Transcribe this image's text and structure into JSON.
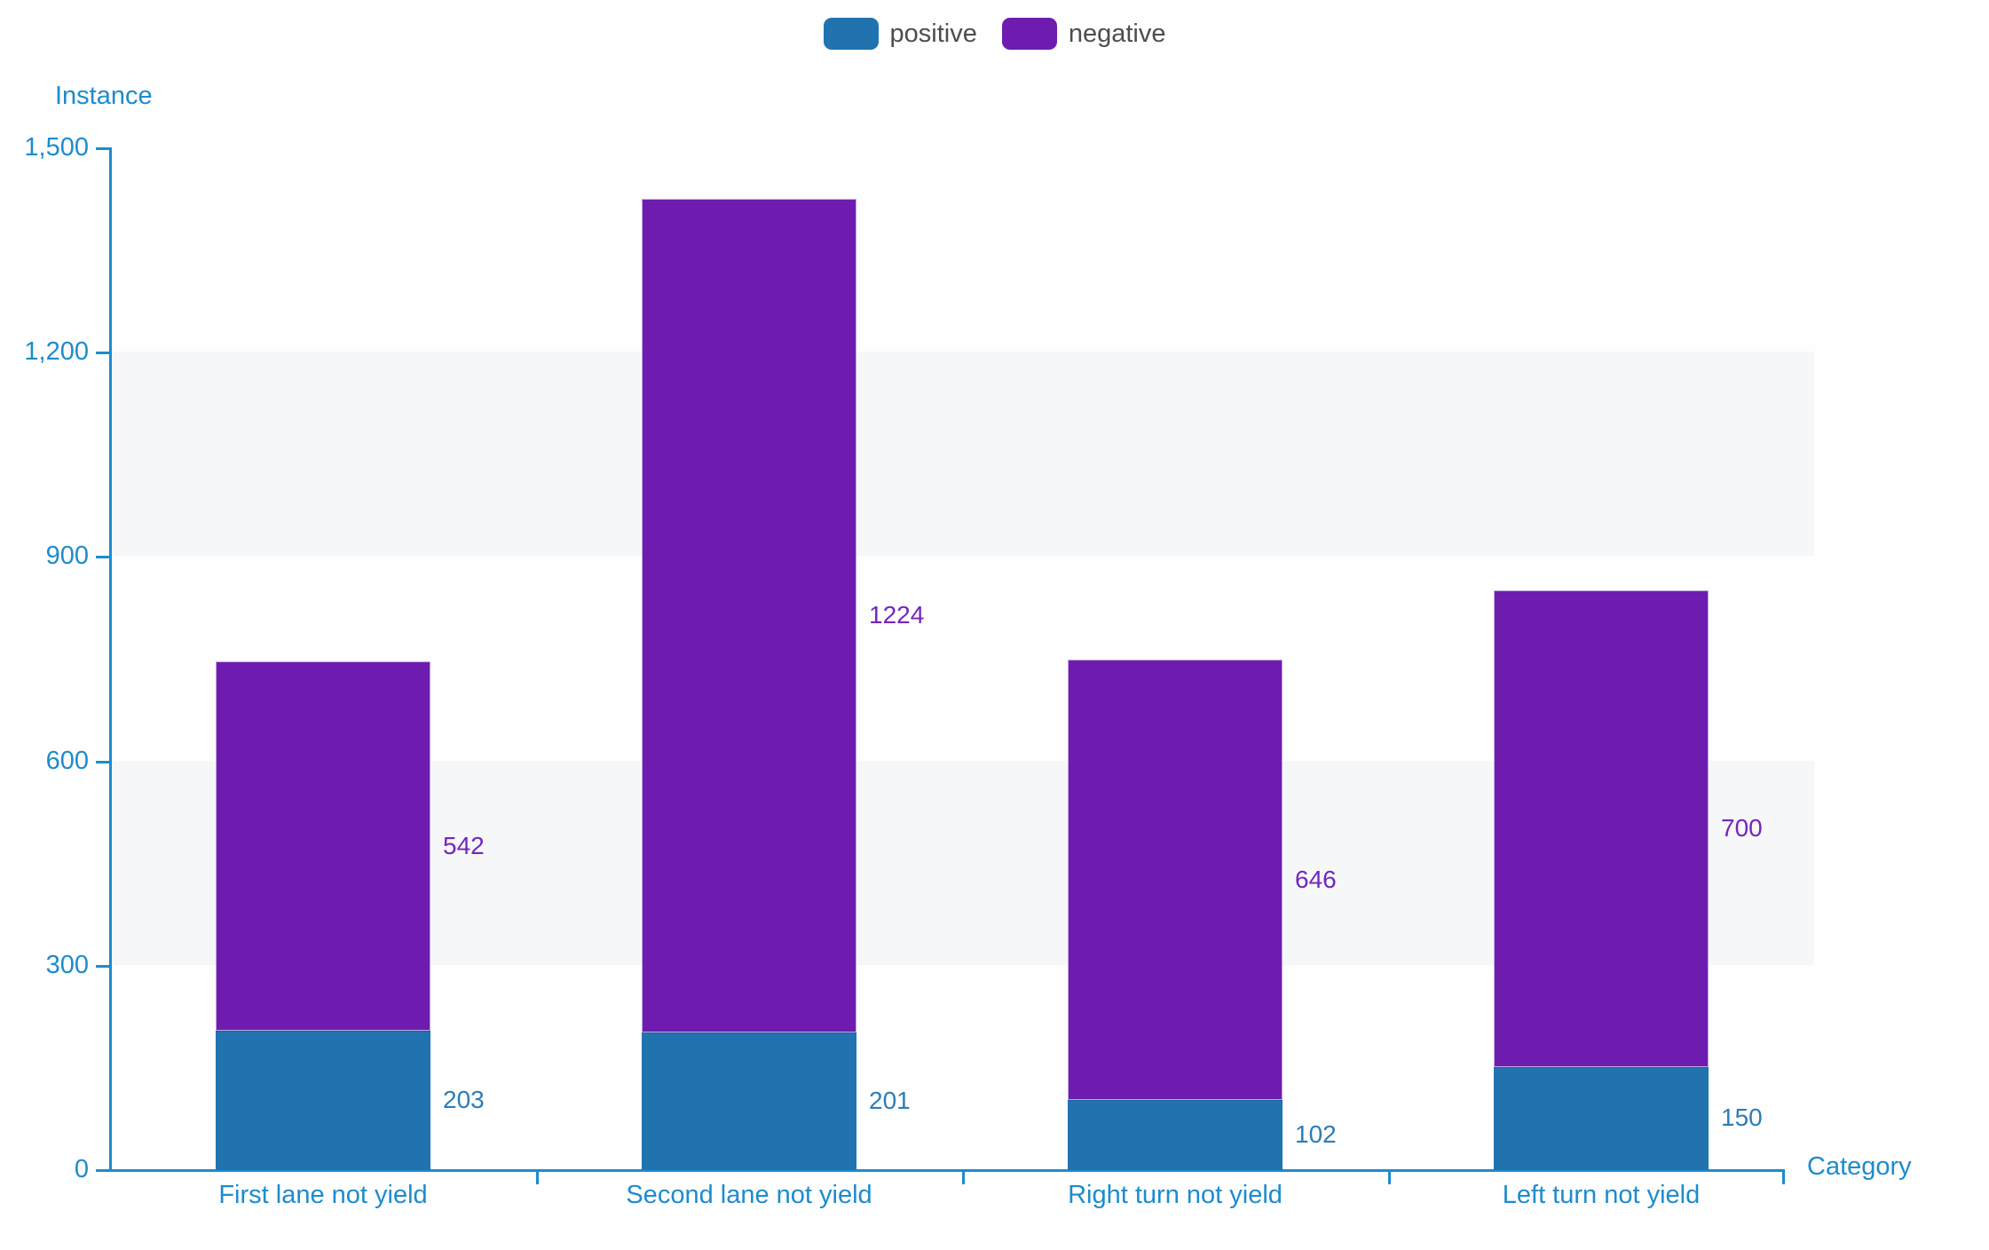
{
  "legend": {
    "items": [
      {
        "label": "positive",
        "color": "#2173b0"
      },
      {
        "label": "negative",
        "color": "#6e1cb0"
      }
    ]
  },
  "axes": {
    "y_title": "Instance",
    "x_title": "Category",
    "axis_color": "#1d8ccd",
    "band_color": "#f6f7f9"
  },
  "chart_data": {
    "type": "bar",
    "stacked": true,
    "categories": [
      "First lane not yield",
      "Second lane not yield",
      "Right turn not yield",
      "Left turn not yield"
    ],
    "series": [
      {
        "name": "positive",
        "color": "#2173b0",
        "label_color": "#2d7db8",
        "values": [
          203,
          201,
          102,
          150
        ]
      },
      {
        "name": "negative",
        "color": "#6e1cb0",
        "label_color": "#7426bc",
        "values": [
          542,
          1224,
          646,
          700
        ]
      }
    ],
    "totals": [
      745,
      1425,
      748,
      850
    ],
    "xlabel": "Category",
    "ylabel": "Instance",
    "ylim": [
      0,
      1500
    ],
    "ytick_values": [
      0,
      300,
      600,
      900,
      1200,
      1500
    ],
    "ytick_labels": [
      "0",
      "300",
      "600",
      "900",
      "1,200",
      "1,500"
    ],
    "gray_band_value_ranges": [
      [
        900,
        1200
      ],
      [
        300,
        600
      ]
    ],
    "legend_position": "top",
    "grid": "alternating-horizontal-bands",
    "data_labels": "outside-right-of-bar"
  }
}
